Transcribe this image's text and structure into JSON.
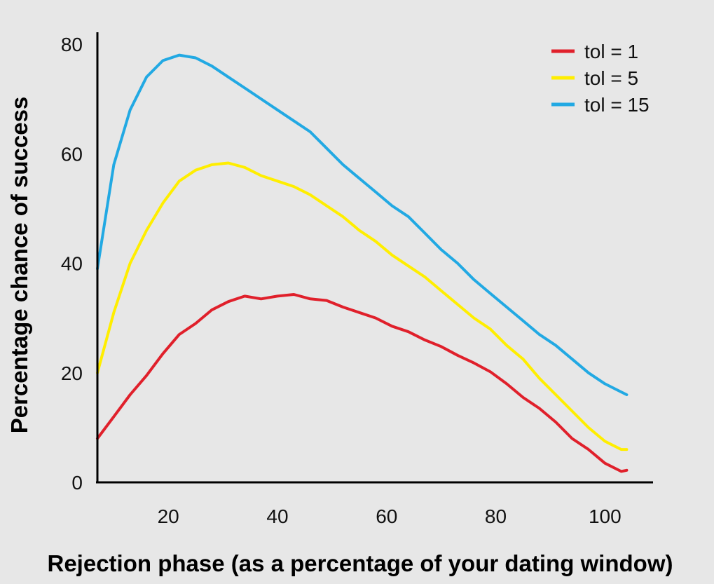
{
  "chart_data": {
    "type": "line",
    "title": "",
    "xlabel": "Rejection phase (as a percentage of your dating window)",
    "ylabel": "Percentage chance of success",
    "xlim": [
      7,
      106
    ],
    "ylim": [
      0,
      80
    ],
    "xticks": [
      "20",
      "40",
      "60",
      "80",
      "100"
    ],
    "yticks": [
      "0",
      "20",
      "40",
      "60",
      "80"
    ],
    "grid": false,
    "legend_position": "top-right",
    "x": [
      7,
      10,
      13,
      16,
      19,
      22,
      25,
      28,
      31,
      34,
      37,
      40,
      43,
      46,
      49,
      52,
      55,
      58,
      61,
      64,
      67,
      70,
      73,
      76,
      79,
      82,
      85,
      88,
      91,
      94,
      97,
      100,
      103,
      104
    ],
    "series": [
      {
        "name": "tol = 1",
        "color": "#e0202b",
        "values": [
          8,
          12,
          16,
          19.5,
          23.5,
          27,
          29,
          31.5,
          33,
          34,
          33.5,
          34,
          34.3,
          33.5,
          33.2,
          32,
          31,
          30,
          28.5,
          27.5,
          26,
          24.8,
          23.2,
          21.8,
          20.2,
          18,
          15.5,
          13.5,
          11,
          8,
          6,
          3.5,
          2,
          2.2
        ]
      },
      {
        "name": "tol = 5",
        "color": "#ffee00",
        "values": [
          20,
          31,
          40,
          46,
          51,
          55,
          57,
          58,
          58.3,
          57.5,
          56,
          55,
          54,
          52.5,
          50.5,
          48.5,
          46,
          44,
          41.5,
          39.5,
          37.5,
          35,
          32.5,
          30,
          28,
          25,
          22.5,
          19,
          16,
          13,
          10,
          7.5,
          6,
          6
        ]
      },
      {
        "name": "tol = 15",
        "color": "#22a9e3",
        "values": [
          39,
          58,
          68,
          74,
          77,
          78,
          77.5,
          76,
          74,
          72,
          70,
          68,
          66,
          64,
          61,
          58,
          55.5,
          53,
          50.5,
          48.5,
          45.5,
          42.5,
          40,
          37,
          34.5,
          32,
          29.5,
          27,
          25,
          22.5,
          20,
          18,
          16.5,
          16
        ]
      }
    ]
  }
}
